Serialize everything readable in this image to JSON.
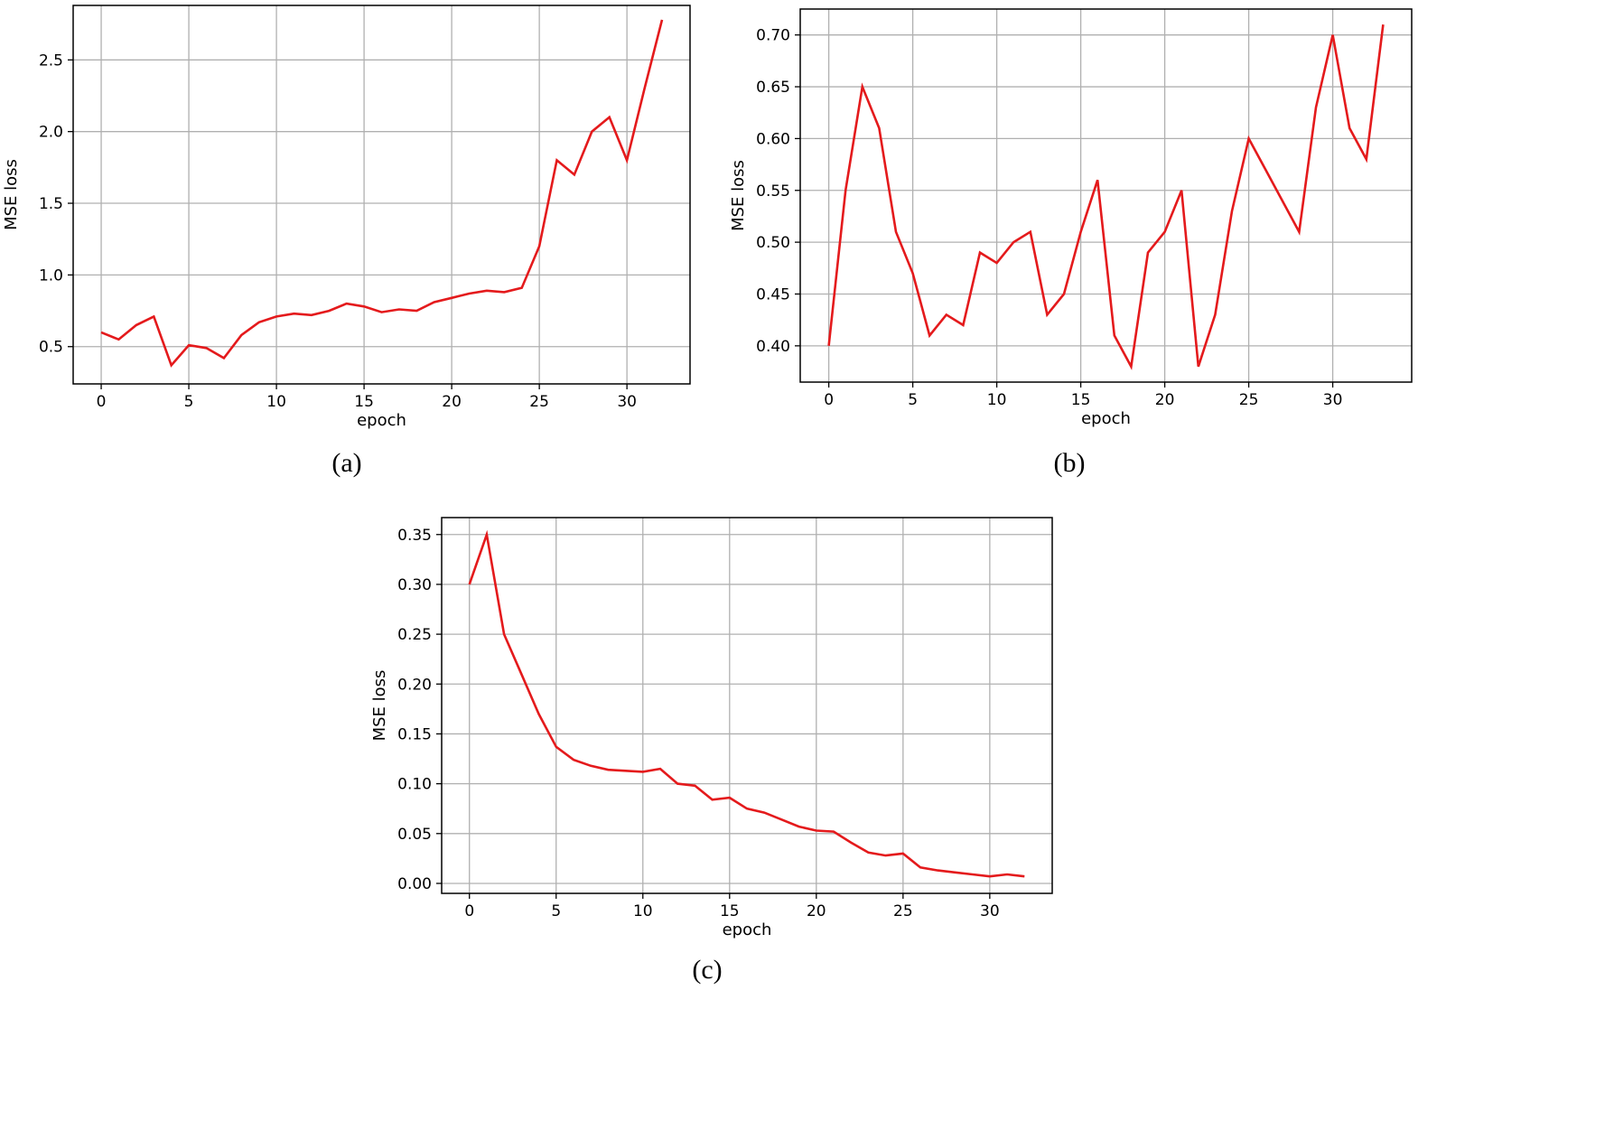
{
  "chart_data": [
    {
      "type": "line",
      "caption": "(a)",
      "xlabel": "epoch",
      "ylabel": "MSE loss",
      "xlim": [
        -1.6,
        33.6
      ],
      "ylim": [
        0.24,
        2.88
      ],
      "xticks": [
        0,
        5,
        10,
        15,
        20,
        25,
        30
      ],
      "yticks": [
        0.5,
        1.0,
        1.5,
        2.0,
        2.5
      ],
      "ytick_labels": [
        "0.5",
        "1.0",
        "1.5",
        "2.0",
        "2.5"
      ],
      "grid": true,
      "color": "#e41a1c",
      "series": [
        {
          "x": [
            0,
            1,
            2,
            3,
            4,
            5,
            6,
            7,
            8,
            9,
            10,
            11,
            12,
            13,
            14,
            15,
            16,
            17,
            18,
            19,
            20,
            21,
            22,
            23,
            24,
            25,
            26,
            27,
            28,
            29,
            30,
            31,
            32
          ],
          "values": [
            0.6,
            0.55,
            0.65,
            0.71,
            0.37,
            0.51,
            0.49,
            0.42,
            0.58,
            0.67,
            0.71,
            0.73,
            0.72,
            0.75,
            0.8,
            0.78,
            0.74,
            0.76,
            0.75,
            0.81,
            0.84,
            0.87,
            0.89,
            0.88,
            0.91,
            1.2,
            1.8,
            1.7,
            2.0,
            2.1,
            1.8,
            2.3,
            2.78
          ]
        }
      ]
    },
    {
      "type": "line",
      "caption": "(b)",
      "xlabel": "epoch",
      "ylabel": "MSE loss",
      "xlim": [
        -1.7,
        34.7
      ],
      "ylim": [
        0.365,
        0.725
      ],
      "xticks": [
        0,
        5,
        10,
        15,
        20,
        25,
        30
      ],
      "yticks": [
        0.4,
        0.45,
        0.5,
        0.55,
        0.6,
        0.65,
        0.7
      ],
      "ytick_labels": [
        "0.40",
        "0.45",
        "0.50",
        "0.55",
        "0.60",
        "0.65",
        "0.70"
      ],
      "grid": true,
      "color": "#e41a1c",
      "series": [
        {
          "x": [
            0,
            1,
            2,
            3,
            4,
            5,
            6,
            7,
            8,
            9,
            10,
            11,
            12,
            13,
            14,
            15,
            16,
            17,
            18,
            19,
            20,
            21,
            22,
            23,
            24,
            25,
            26,
            27,
            28,
            29,
            30,
            31,
            32,
            33
          ],
          "values": [
            0.4,
            0.55,
            0.65,
            0.61,
            0.51,
            0.47,
            0.41,
            0.43,
            0.42,
            0.49,
            0.48,
            0.5,
            0.51,
            0.43,
            0.45,
            0.51,
            0.56,
            0.41,
            0.38,
            0.49,
            0.51,
            0.55,
            0.38,
            0.43,
            0.53,
            0.6,
            0.57,
            0.54,
            0.51,
            0.63,
            0.7,
            0.61,
            0.58,
            0.71
          ]
        }
      ]
    },
    {
      "type": "line",
      "caption": "(c)",
      "xlabel": "epoch",
      "ylabel": "MSE loss",
      "xlim": [
        -1.6,
        33.6
      ],
      "ylim": [
        -0.01,
        0.367
      ],
      "xticks": [
        0,
        5,
        10,
        15,
        20,
        25,
        30
      ],
      "yticks": [
        0.0,
        0.05,
        0.1,
        0.15,
        0.2,
        0.25,
        0.3,
        0.35
      ],
      "ytick_labels": [
        "0.00",
        "0.05",
        "0.10",
        "0.15",
        "0.20",
        "0.25",
        "0.30",
        "0.35"
      ],
      "grid": true,
      "color": "#e41a1c",
      "series": [
        {
          "x": [
            0,
            1,
            2,
            3,
            4,
            5,
            6,
            7,
            8,
            9,
            10,
            11,
            12,
            13,
            14,
            15,
            16,
            17,
            18,
            19,
            20,
            21,
            22,
            23,
            24,
            25,
            26,
            27,
            28,
            29,
            30,
            31,
            32
          ],
          "values": [
            0.3,
            0.35,
            0.25,
            0.21,
            0.17,
            0.137,
            0.124,
            0.118,
            0.114,
            0.113,
            0.112,
            0.115,
            0.1,
            0.098,
            0.084,
            0.086,
            0.075,
            0.071,
            0.064,
            0.057,
            0.053,
            0.052,
            0.041,
            0.031,
            0.028,
            0.03,
            0.016,
            0.013,
            0.011,
            0.009,
            0.007,
            0.009,
            0.007
          ]
        }
      ]
    }
  ]
}
